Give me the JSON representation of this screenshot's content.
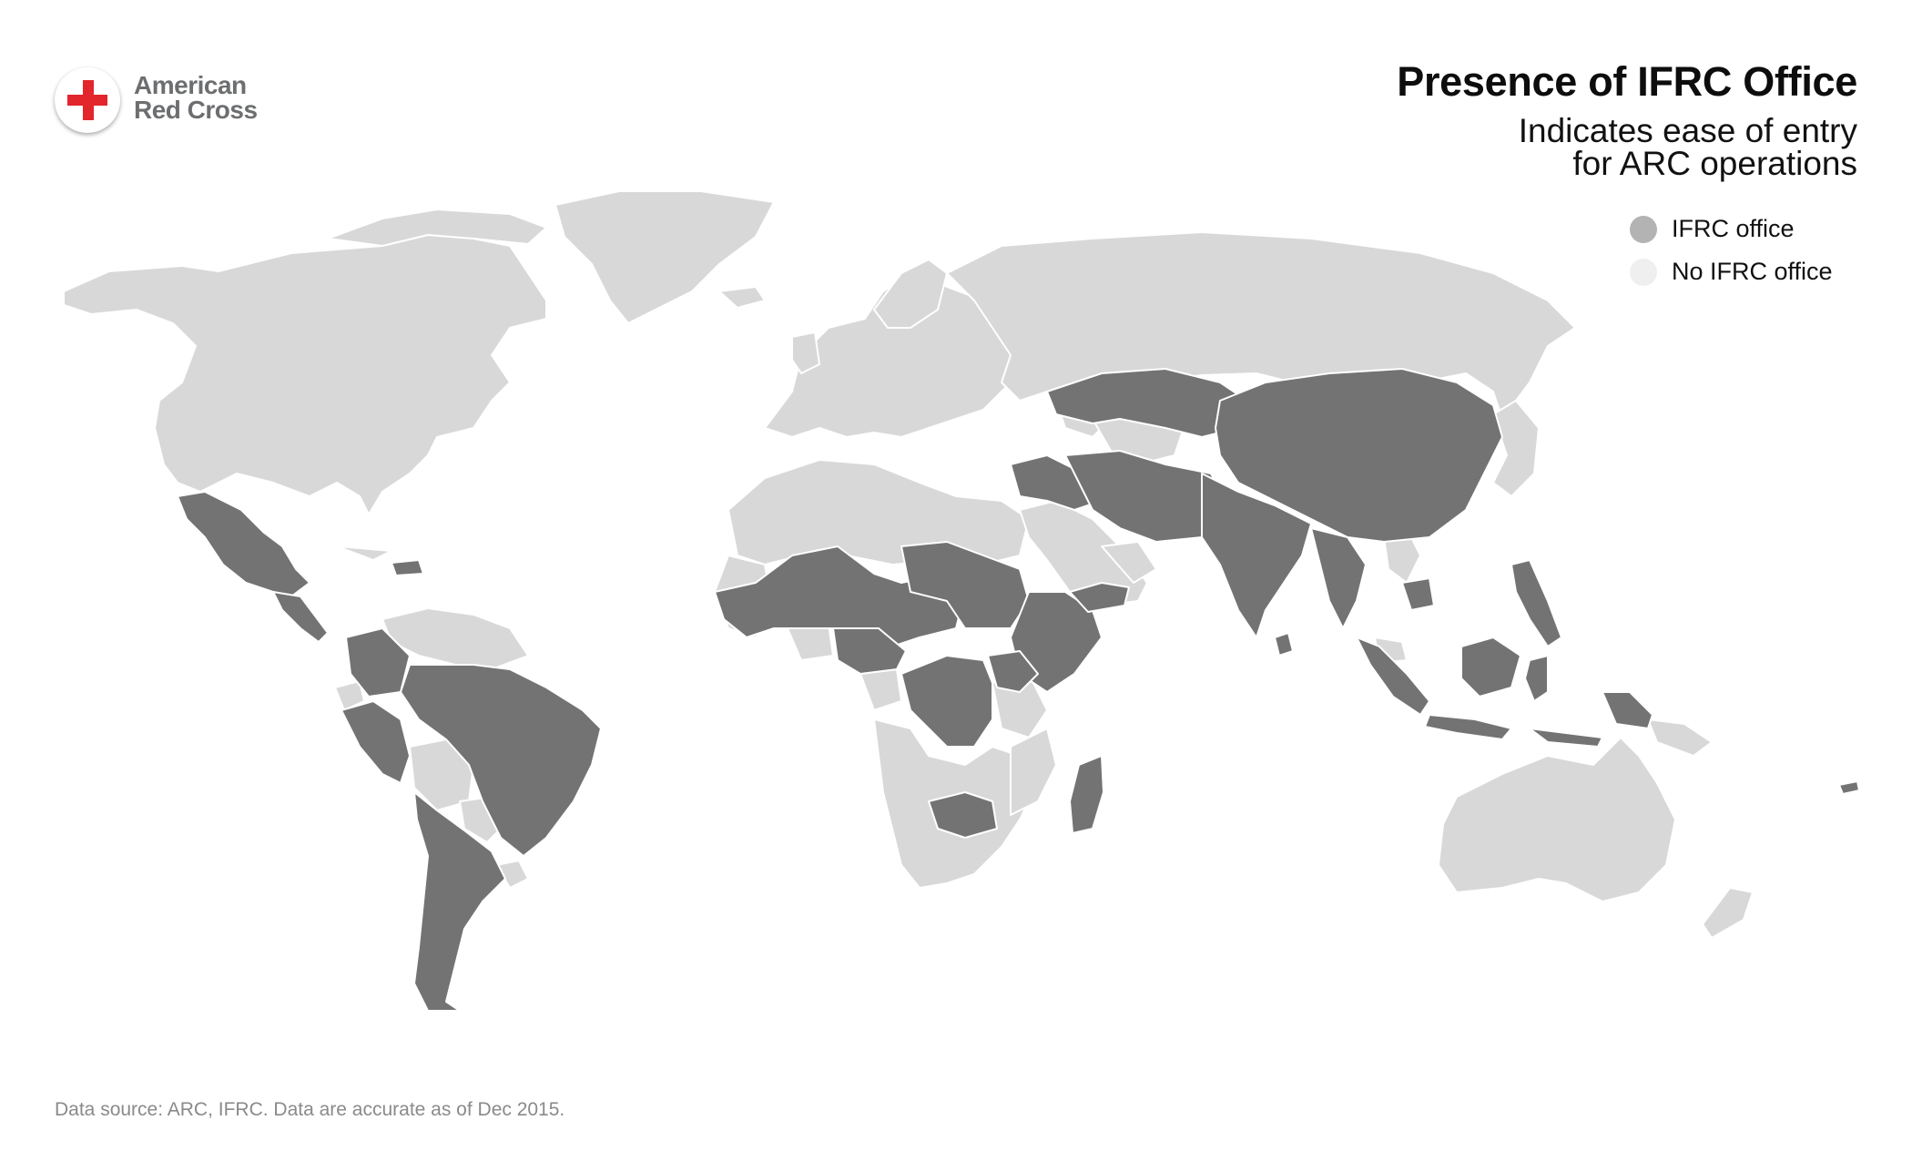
{
  "logo": {
    "line1": "American",
    "line2": "Red Cross",
    "cross_color": "#e3252c"
  },
  "header": {
    "title": "Presence of IFRC Office",
    "subtitle_line1": "Indicates ease of entry",
    "subtitle_line2": "for ARC operations"
  },
  "legend": {
    "items": [
      {
        "label": "IFRC office",
        "color": "#b3b3b3"
      },
      {
        "label": "No IFRC office",
        "color": "#efefef"
      }
    ]
  },
  "map": {
    "colors": {
      "ifrc_office": "#737373",
      "no_ifrc_office": "#d8d8d8",
      "border": "#ffffff"
    }
  },
  "footer": {
    "source": "Data source: ARC, IFRC. Data are accurate as of Dec 2015."
  }
}
